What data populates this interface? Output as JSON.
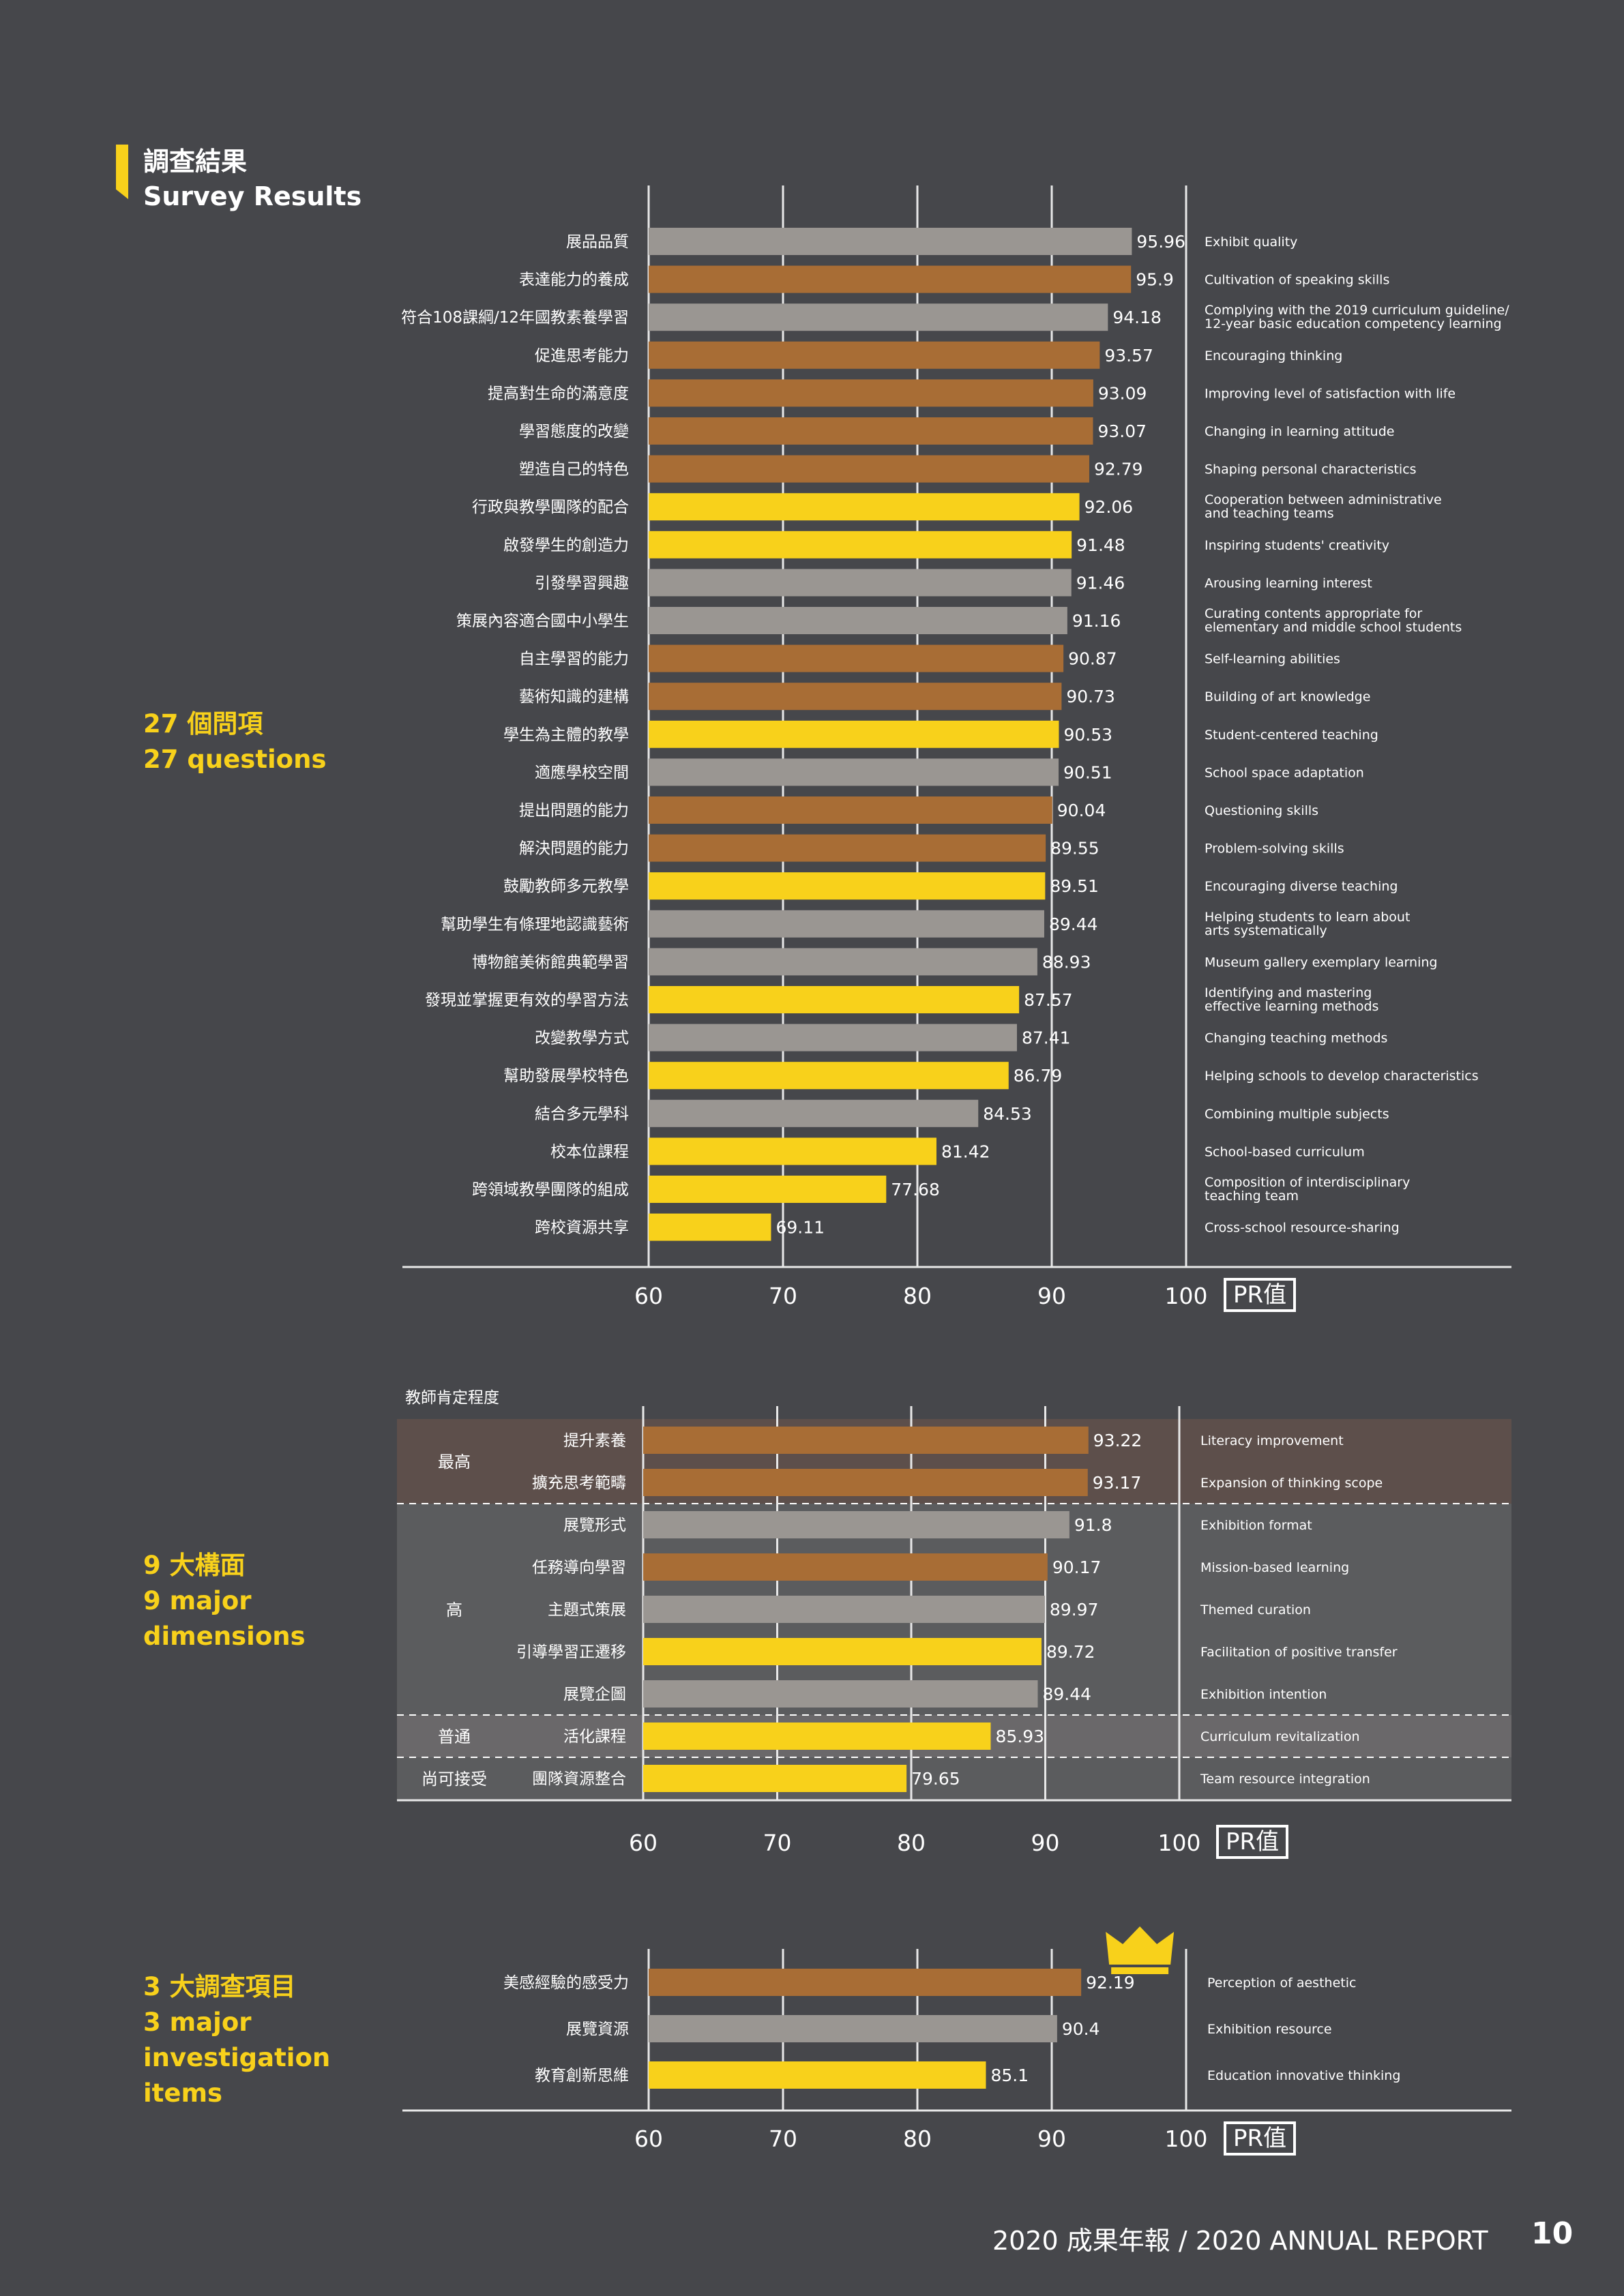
{
  "header": {
    "title_zh": "調查結果",
    "title_en": "Survey Results"
  },
  "sections": [
    {
      "zh": "27 個問項",
      "en": [
        "27 questions"
      ]
    },
    {
      "zh": "9 大構面",
      "en": [
        "9 major",
        "dimensions"
      ]
    },
    {
      "zh": "3 大調查項目",
      "en": [
        "3 major",
        "investigation",
        "items"
      ]
    }
  ],
  "footer": {
    "report": "2020 成果年報 / 2020 ANNUAL REPORT",
    "page": "10"
  },
  "colors": {
    "gray": "#9a9692",
    "brown": "#a86d35",
    "yellow": "#f8d11b"
  },
  "chart_data": [
    {
      "type": "bar",
      "orientation": "horizontal",
      "title": "27 questions",
      "xlim": [
        60,
        100
      ],
      "xticks": [
        "60",
        "70",
        "80",
        "90",
        "100"
      ],
      "unit_label": "PR值",
      "bars": [
        {
          "zh": "展品品質",
          "en": [
            "Exhibit quality"
          ],
          "value": 95.96,
          "label": "95.96",
          "color": "gray"
        },
        {
          "zh": "表達能力的養成",
          "en": [
            "Cultivation of speaking skills"
          ],
          "value": 95.9,
          "label": "95.9",
          "color": "brown"
        },
        {
          "zh": "符合108課綱/12年國教素養學習",
          "en": [
            "Complying with the 2019 curriculum guideline/",
            "12-year basic education competency learning"
          ],
          "value": 94.18,
          "label": "94.18",
          "color": "gray"
        },
        {
          "zh": "促進思考能力",
          "en": [
            "Encouraging thinking"
          ],
          "value": 93.57,
          "label": "93.57",
          "color": "brown"
        },
        {
          "zh": "提高對生命的滿意度",
          "en": [
            "Improving level of satisfaction with life"
          ],
          "value": 93.09,
          "label": "93.09",
          "color": "brown"
        },
        {
          "zh": "學習態度的改變",
          "en": [
            "Changing in learning attitude"
          ],
          "value": 93.07,
          "label": "93.07",
          "color": "brown"
        },
        {
          "zh": "塑造自己的特色",
          "en": [
            "Shaping personal characteristics"
          ],
          "value": 92.79,
          "label": "92.79",
          "color": "brown"
        },
        {
          "zh": "行政與教學團隊的配合",
          "en": [
            "Cooperation between administrative",
            "and teaching teams"
          ],
          "value": 92.06,
          "label": "92.06",
          "color": "yellow"
        },
        {
          "zh": "啟發學生的創造力",
          "en": [
            "Inspiring students'  creativity"
          ],
          "value": 91.48,
          "label": "91.48",
          "color": "yellow"
        },
        {
          "zh": "引發學習興趣",
          "en": [
            "Arousing learning interest"
          ],
          "value": 91.46,
          "label": "91.46",
          "color": "gray"
        },
        {
          "zh": "策展內容適合國中小學生",
          "en": [
            "Curating contents appropriate for",
            "elementary and middle school students"
          ],
          "value": 91.16,
          "label": "91.16",
          "color": "gray"
        },
        {
          "zh": "自主學習的能力",
          "en": [
            "Self-learning abilities"
          ],
          "value": 90.87,
          "label": "90.87",
          "color": "brown"
        },
        {
          "zh": "藝術知識的建構",
          "en": [
            "Building of art knowledge"
          ],
          "value": 90.73,
          "label": "90.73",
          "color": "brown"
        },
        {
          "zh": "學生為主體的教學",
          "en": [
            "Student-centered teaching"
          ],
          "value": 90.53,
          "label": "90.53",
          "color": "yellow"
        },
        {
          "zh": "適應學校空間",
          "en": [
            "School space adaptation"
          ],
          "value": 90.51,
          "label": "90.51",
          "color": "gray"
        },
        {
          "zh": "提出問題的能力",
          "en": [
            "Questioning skills"
          ],
          "value": 90.04,
          "label": "90.04",
          "color": "brown"
        },
        {
          "zh": "解決問題的能力",
          "en": [
            "Problem-solving skills"
          ],
          "value": 89.55,
          "label": "89.55",
          "color": "brown"
        },
        {
          "zh": "鼓勵教師多元教學",
          "en": [
            "Encouraging diverse teaching"
          ],
          "value": 89.51,
          "label": "89.51",
          "color": "yellow"
        },
        {
          "zh": "幫助學生有條理地認識藝術",
          "en": [
            "Helping students to learn about",
            "arts systematically"
          ],
          "value": 89.44,
          "label": "89.44",
          "color": "gray"
        },
        {
          "zh": "博物館美術館典範學習",
          "en": [
            "Museum gallery exemplary learning"
          ],
          "value": 88.93,
          "label": "88.93",
          "color": "gray"
        },
        {
          "zh": "發現並掌握更有效的學習方法",
          "en": [
            "Identifying and mastering",
            "effective learning methods"
          ],
          "value": 87.57,
          "label": "87.57",
          "color": "yellow"
        },
        {
          "zh": "改變教學方式",
          "en": [
            "Changing teaching methods"
          ],
          "value": 87.41,
          "label": "87.41",
          "color": "gray"
        },
        {
          "zh": "幫助發展學校特色",
          "en": [
            "Helping schools to develop characteristics"
          ],
          "value": 86.79,
          "label": "86.79",
          "color": "yellow"
        },
        {
          "zh": "結合多元學科",
          "en": [
            "Combining multiple subjects"
          ],
          "value": 84.53,
          "label": "84.53",
          "color": "gray"
        },
        {
          "zh": "校本位課程",
          "en": [
            "School-based curriculum"
          ],
          "value": 81.42,
          "label": "81.42",
          "color": "yellow"
        },
        {
          "zh": "跨領域教學團隊的組成",
          "en": [
            "Composition of interdisciplinary",
            "teaching team"
          ],
          "value": 77.68,
          "label": "77.68",
          "color": "yellow"
        },
        {
          "zh": "跨校資源共享",
          "en": [
            "Cross-school resource-sharing"
          ],
          "value": 69.11,
          "label": "69.11",
          "color": "yellow"
        }
      ]
    },
    {
      "type": "bar",
      "orientation": "horizontal",
      "title": "9 major dimensions",
      "group_header": "教師肯定程度",
      "xlim": [
        60,
        100
      ],
      "xticks": [
        "60",
        "70",
        "80",
        "90",
        "100"
      ],
      "unit_label": "PR值",
      "groups": [
        {
          "label": "最高",
          "count": 2
        },
        {
          "label": "高",
          "count": 5
        },
        {
          "label": "普通",
          "count": 1
        },
        {
          "label": "尚可接受",
          "count": 1
        }
      ],
      "bars": [
        {
          "zh": "提升素養",
          "en": [
            "Literacy improvement"
          ],
          "value": 93.22,
          "label": "93.22",
          "color": "brown"
        },
        {
          "zh": "擴充思考範疇",
          "en": [
            "Expansion of thinking scope"
          ],
          "value": 93.17,
          "label": "93.17",
          "color": "brown"
        },
        {
          "zh": "展覽形式",
          "en": [
            "Exhibition format"
          ],
          "value": 91.8,
          "label": "91.8",
          "color": "gray"
        },
        {
          "zh": "任務導向學習",
          "en": [
            "Mission-based learning"
          ],
          "value": 90.17,
          "label": "90.17",
          "color": "brown"
        },
        {
          "zh": "主題式策展",
          "en": [
            "Themed curation"
          ],
          "value": 89.97,
          "label": "89.97",
          "color": "gray"
        },
        {
          "zh": "引導學習正遷移",
          "en": [
            "Facilitation of positive transfer"
          ],
          "value": 89.72,
          "label": "89.72",
          "color": "yellow"
        },
        {
          "zh": "展覽企圖",
          "en": [
            "Exhibition intention"
          ],
          "value": 89.44,
          "label": "89.44",
          "color": "gray"
        },
        {
          "zh": "活化課程",
          "en": [
            "Curriculum revitalization"
          ],
          "value": 85.93,
          "label": "85.93",
          "color": "yellow"
        },
        {
          "zh": "團隊資源整合",
          "en": [
            "Team resource integration"
          ],
          "value": 79.65,
          "label": "79.65",
          "color": "yellow"
        }
      ]
    },
    {
      "type": "bar",
      "orientation": "horizontal",
      "title": "3 major investigation items",
      "xlim": [
        60,
        100
      ],
      "xticks": [
        "60",
        "70",
        "80",
        "90",
        "100"
      ],
      "unit_label": "PR值",
      "bars": [
        {
          "zh": "美感經驗的感受力",
          "en": [
            "Perception of aesthetic"
          ],
          "value": 92.19,
          "label": "92.19",
          "color": "brown",
          "crown": true
        },
        {
          "zh": "展覽資源",
          "en": [
            "Exhibition resource"
          ],
          "value": 90.4,
          "label": "90.4",
          "color": "gray"
        },
        {
          "zh": "教育創新思維",
          "en": [
            "Education innovative thinking"
          ],
          "value": 85.1,
          "label": "85.1",
          "color": "yellow"
        }
      ]
    }
  ]
}
